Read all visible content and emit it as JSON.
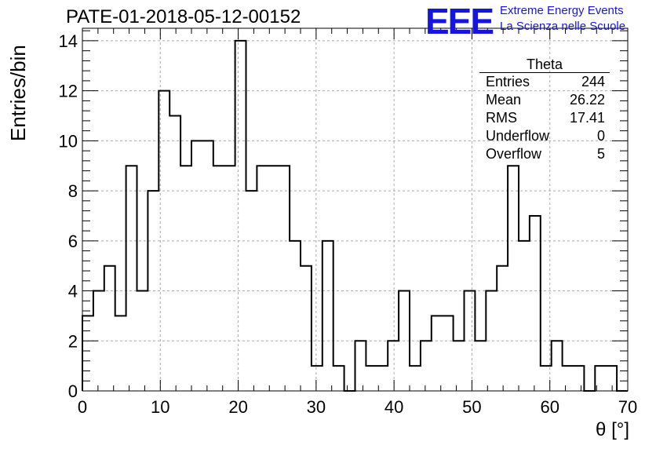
{
  "header": {
    "run_title": "PATE-01-2018-05-12-00152",
    "logo_text": "EEE",
    "logo_line1": "Extreme Energy Events",
    "logo_line2": "La Scienza nelle Scuole",
    "logo_color": "#1515e0"
  },
  "stats_box": {
    "title": "Theta",
    "rows": [
      {
        "label": "Entries",
        "value": "244"
      },
      {
        "label": "Mean",
        "value": "26.22"
      },
      {
        "label": "RMS",
        "value": "17.41"
      },
      {
        "label": "Underflow",
        "value": "0"
      },
      {
        "label": "Overflow",
        "value": "5"
      }
    ]
  },
  "chart_data": {
    "type": "histogram",
    "xlabel": "θ [°]",
    "ylabel": "Entries/bin",
    "xlim": [
      0,
      70
    ],
    "ylim": [
      0,
      14.5
    ],
    "xticks": [
      0,
      10,
      20,
      30,
      40,
      50,
      60,
      70
    ],
    "yticks": [
      0,
      2,
      4,
      6,
      8,
      10,
      12,
      14
    ],
    "grid": true,
    "bin_edges": [
      0,
      1.4,
      2.8,
      4.2,
      5.6,
      7.0,
      8.4,
      9.8,
      11.2,
      12.6,
      14.0,
      15.4,
      16.8,
      18.2,
      19.6,
      21.0,
      22.4,
      23.8,
      25.2,
      26.6,
      28.0,
      29.4,
      30.8,
      32.2,
      33.6,
      35.0,
      36.4,
      37.8,
      39.2,
      40.6,
      42.0,
      43.4,
      44.8,
      46.2,
      47.6,
      49.0,
      50.4,
      51.8,
      53.2,
      54.6,
      56.0,
      57.4,
      58.8,
      60.2,
      61.6,
      63.0,
      64.4,
      65.8,
      67.2,
      68.6,
      70.0
    ],
    "counts": [
      3,
      4,
      5,
      3,
      9,
      4,
      8,
      12,
      11,
      9,
      10,
      10,
      9,
      9,
      14,
      8,
      9,
      9,
      9,
      6,
      5,
      1,
      6,
      1,
      0,
      2,
      1,
      1,
      2,
      4,
      1,
      2,
      3,
      3,
      2,
      4,
      2,
      4,
      5,
      9,
      6,
      7,
      1,
      2,
      1,
      1,
      0,
      1,
      1,
      0
    ],
    "line_color": "#000000"
  }
}
